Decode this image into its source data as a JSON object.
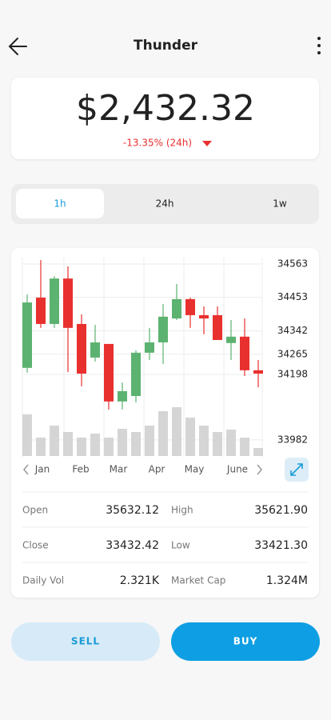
{
  "header": {
    "title": "Thunder"
  },
  "price": {
    "value": "$2,432.32",
    "change": "-13.35% (24h)"
  },
  "tabs": [
    "1h",
    "24h",
    "1w"
  ],
  "chart_data": {
    "type": "candlestick",
    "x_labels": [
      "Jan",
      "Feb",
      "Mar",
      "Apr",
      "May",
      "June"
    ],
    "open": [
      34220,
      34452,
      34365,
      34515,
      34365,
      34254,
      34299,
      34109,
      34127,
      34270,
      34304,
      34383,
      34447,
      34394,
      34394,
      34302,
      34323,
      34212
    ],
    "high": [
      34463,
      34576,
      34523,
      34555,
      34397,
      34362,
      34299,
      34172,
      34278,
      34352,
      34431,
      34497,
      34452,
      34423,
      34423,
      34378,
      34383,
      34246
    ],
    "low": [
      34204,
      34352,
      34352,
      34206,
      34159,
      34241,
      34082,
      34082,
      34106,
      34246,
      34233,
      34378,
      34352,
      34331,
      34312,
      34246,
      34193,
      34156
    ],
    "close": [
      34436,
      34365,
      34515,
      34352,
      34201,
      34304,
      34109,
      34143,
      34270,
      34304,
      34389,
      34447,
      34394,
      34383,
      34312,
      34323,
      34212,
      34201
    ],
    "volume": [
      52,
      23,
      38,
      30,
      23,
      28,
      23,
      34,
      30,
      38,
      56,
      61,
      48,
      38,
      30,
      33,
      23,
      10
    ],
    "ylim": [
      33950,
      34600
    ],
    "yticks": [
      34563,
      34453,
      34342,
      34265,
      34198,
      33982
    ],
    "grid": true,
    "up_color": "#5cb270",
    "down_color": "#e8302e",
    "volume_color": "#d5d5d5"
  },
  "stats": [
    {
      "label": "Open",
      "value": "35632.12"
    },
    {
      "label": "High",
      "value": "35621.90"
    },
    {
      "label": "Close",
      "value": "33432.42"
    },
    {
      "label": "Low",
      "value": "33421.30"
    },
    {
      "label": "Daily Vol",
      "value": "2.321K"
    },
    {
      "label": "Market Cap",
      "value": "1.324M"
    }
  ],
  "actions": {
    "sell": "SELL",
    "buy": "BUY"
  }
}
